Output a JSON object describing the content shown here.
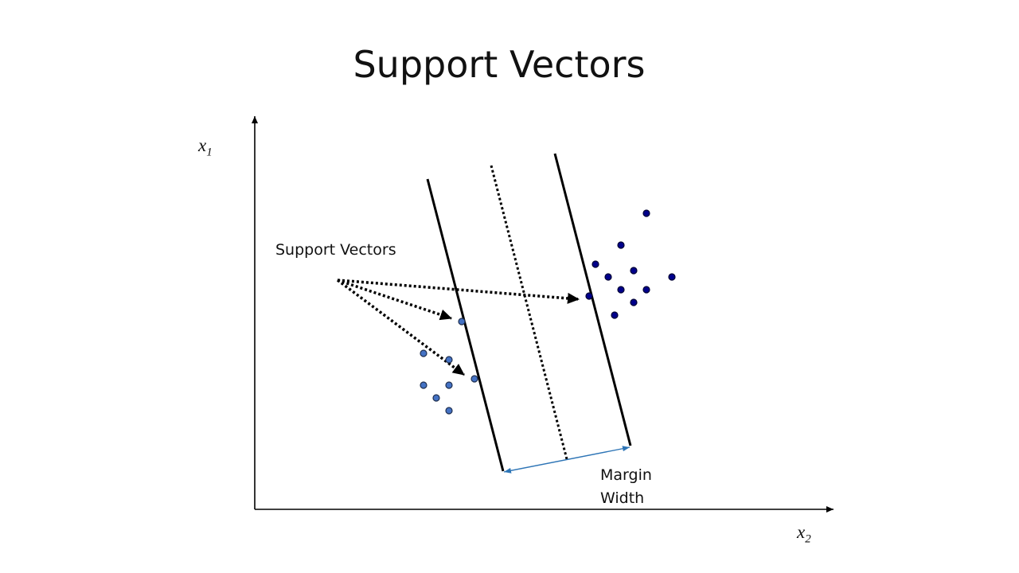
{
  "slide": {
    "title": "Support Vectors",
    "axes": {
      "vertical_label": {
        "var": "x",
        "sub": "1"
      },
      "horizontal_label": {
        "var": "x",
        "sub": "2"
      }
    },
    "annotations": {
      "support_vectors_label": "Support Vectors",
      "margin_label_line1": "Margin",
      "margin_label_line2": "Width"
    },
    "colors": {
      "class_a_fill": "#4472c4",
      "class_b_fill": "#00008b",
      "margin_arrow": "#2e75b6",
      "lines": "#000000"
    }
  }
}
